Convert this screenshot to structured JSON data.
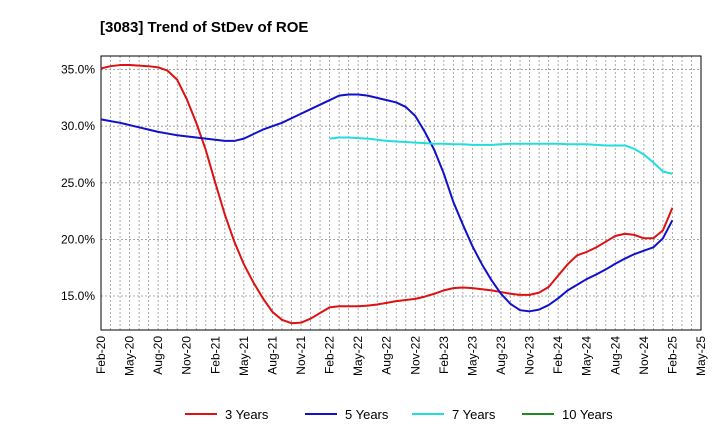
{
  "chart_data": {
    "type": "line",
    "title": "[3083]  Trend of StDev of ROE",
    "xlabel": "",
    "ylabel": "",
    "x_ticks": [
      "Feb-20",
      "May-20",
      "Aug-20",
      "Nov-20",
      "Feb-21",
      "May-21",
      "Aug-21",
      "Nov-21",
      "Feb-22",
      "May-22",
      "Aug-22",
      "Nov-22",
      "Feb-23",
      "May-23",
      "Aug-23",
      "Nov-23",
      "Feb-24",
      "May-24",
      "Aug-24",
      "Nov-24",
      "Feb-25",
      "May-25"
    ],
    "y_ticks": [
      "15.0%",
      "20.0%",
      "25.0%",
      "30.0%",
      "35.0%"
    ],
    "y_tick_values": [
      15,
      20,
      25,
      30,
      35
    ],
    "ylim": [
      12,
      36.2
    ],
    "grid": true,
    "legend_position": "bottom",
    "series": [
      {
        "name": "3 Years",
        "color": "#dd1111",
        "x": [
          "Feb-20",
          "Mar-20",
          "Apr-20",
          "May-20",
          "Jun-20",
          "Jul-20",
          "Aug-20",
          "Sep-20",
          "Oct-20",
          "Nov-20",
          "Dec-20",
          "Jan-21",
          "Feb-21",
          "Mar-21",
          "Apr-21",
          "May-21",
          "Jun-21",
          "Jul-21",
          "Aug-21",
          "Sep-21",
          "Oct-21",
          "Nov-21",
          "Dec-21",
          "Jan-22",
          "Feb-22",
          "Mar-22",
          "Apr-22",
          "May-22",
          "Jun-22",
          "Jul-22",
          "Aug-22",
          "Sep-22",
          "Oct-22",
          "Nov-22",
          "Dec-22",
          "Jan-23",
          "Feb-23",
          "Mar-23",
          "Apr-23",
          "May-23",
          "Jun-23",
          "Jul-23",
          "Aug-23",
          "Sep-23",
          "Oct-23",
          "Nov-23",
          "Dec-23",
          "Jan-24",
          "Feb-24",
          "Mar-24",
          "Apr-24",
          "May-24",
          "Jun-24",
          "Jul-24",
          "Aug-24",
          "Sep-24",
          "Oct-24",
          "Nov-24",
          "Dec-24",
          "Jan-25",
          "Feb-25"
        ],
        "values": [
          35.1,
          35.3,
          35.4,
          35.4,
          35.35,
          35.3,
          35.2,
          34.9,
          34.1,
          32.4,
          30.3,
          27.9,
          25.0,
          22.2,
          19.8,
          17.8,
          16.2,
          14.8,
          13.6,
          12.9,
          12.6,
          12.65,
          13.0,
          13.5,
          14.0,
          14.1,
          14.1,
          14.1,
          14.15,
          14.25,
          14.4,
          14.55,
          14.65,
          14.75,
          14.95,
          15.2,
          15.5,
          15.7,
          15.75,
          15.7,
          15.6,
          15.5,
          15.35,
          15.2,
          15.1,
          15.1,
          15.3,
          15.8,
          16.8,
          17.8,
          18.6,
          18.9,
          19.3,
          19.8,
          20.3,
          20.5,
          20.4,
          20.1,
          20.1,
          20.8,
          22.8
        ]
      },
      {
        "name": "5 Years",
        "color": "#1111cc",
        "x": [
          "Feb-20",
          "Mar-20",
          "Apr-20",
          "May-20",
          "Jun-20",
          "Jul-20",
          "Aug-20",
          "Sep-20",
          "Oct-20",
          "Nov-20",
          "Dec-20",
          "Jan-21",
          "Feb-21",
          "Mar-21",
          "Apr-21",
          "May-21",
          "Jun-21",
          "Jul-21",
          "Aug-21",
          "Sep-21",
          "Oct-21",
          "Nov-21",
          "Dec-21",
          "Jan-22",
          "Feb-22",
          "Mar-22",
          "Apr-22",
          "May-22",
          "Jun-22",
          "Jul-22",
          "Aug-22",
          "Sep-22",
          "Oct-22",
          "Nov-22",
          "Dec-22",
          "Jan-23",
          "Feb-23",
          "Mar-23",
          "Apr-23",
          "May-23",
          "Jun-23",
          "Jul-23",
          "Aug-23",
          "Sep-23",
          "Oct-23",
          "Nov-23",
          "Dec-23",
          "Jan-24",
          "Feb-24",
          "Mar-24",
          "Apr-24",
          "May-24",
          "Jun-24",
          "Jul-24",
          "Aug-24",
          "Sep-24",
          "Oct-24",
          "Nov-24",
          "Dec-24",
          "Jan-25",
          "Feb-25"
        ],
        "values": [
          30.6,
          30.45,
          30.3,
          30.1,
          29.9,
          29.7,
          29.5,
          29.35,
          29.2,
          29.1,
          29.0,
          28.9,
          28.8,
          28.7,
          28.7,
          28.9,
          29.3,
          29.7,
          30.0,
          30.3,
          30.7,
          31.1,
          31.5,
          31.9,
          32.3,
          32.7,
          32.8,
          32.8,
          32.7,
          32.5,
          32.3,
          32.1,
          31.7,
          30.9,
          29.5,
          27.9,
          25.8,
          23.3,
          21.3,
          19.4,
          17.8,
          16.4,
          15.2,
          14.3,
          13.75,
          13.65,
          13.8,
          14.2,
          14.8,
          15.5,
          16.0,
          16.5,
          16.9,
          17.35,
          17.85,
          18.3,
          18.7,
          19.0,
          19.3,
          20.1,
          21.7
        ]
      },
      {
        "name": "7 Years",
        "color": "#22dddd",
        "x": [
          "Feb-22",
          "Mar-22",
          "Apr-22",
          "May-22",
          "Jun-22",
          "Jul-22",
          "Aug-22",
          "Sep-22",
          "Oct-22",
          "Nov-22",
          "Dec-22",
          "Jan-23",
          "Feb-23",
          "Mar-23",
          "Apr-23",
          "May-23",
          "Jun-23",
          "Jul-23",
          "Aug-23",
          "Sep-23",
          "Oct-23",
          "Nov-23",
          "Dec-23",
          "Jan-24",
          "Feb-24",
          "Mar-24",
          "Apr-24",
          "May-24",
          "Jun-24",
          "Jul-24",
          "Aug-24",
          "Sep-24",
          "Oct-24",
          "Nov-24",
          "Dec-24",
          "Jan-25",
          "Feb-25"
        ],
        "values": [
          28.9,
          29.0,
          29.0,
          28.95,
          28.9,
          28.8,
          28.7,
          28.65,
          28.6,
          28.55,
          28.5,
          28.45,
          28.45,
          28.4,
          28.4,
          28.35,
          28.35,
          28.35,
          28.4,
          28.45,
          28.45,
          28.45,
          28.45,
          28.45,
          28.45,
          28.4,
          28.4,
          28.4,
          28.35,
          28.3,
          28.3,
          28.3,
          28.0,
          27.5,
          26.8,
          26.0,
          25.8
        ]
      },
      {
        "name": "10 Years",
        "color": "#228822",
        "x": [],
        "values": []
      }
    ]
  }
}
